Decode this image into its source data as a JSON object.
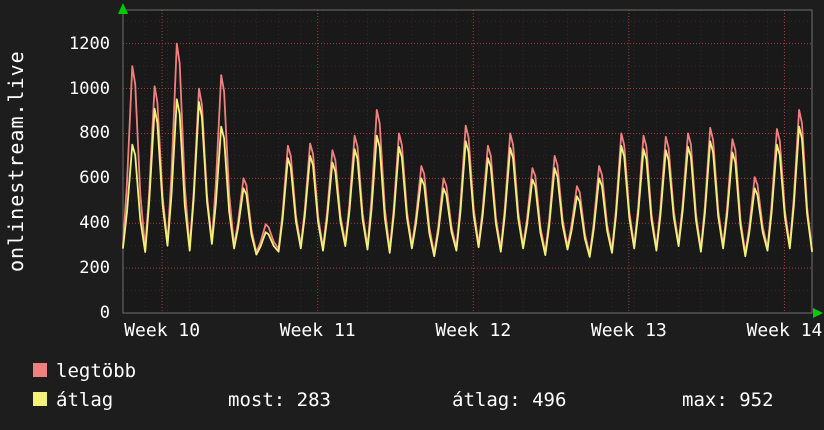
{
  "chart_data": {
    "type": "line",
    "title": "",
    "ylabel": "onlinestream.live",
    "xlabel": "",
    "grid": true,
    "legend_position": "bottom-left",
    "ylim": [
      0,
      1350
    ],
    "y_ticks": [
      0,
      200,
      400,
      600,
      800,
      1000,
      1200
    ],
    "x_tick_labels": [
      "Week 10",
      "Week 11",
      "Week 12",
      "Week 13",
      "Week 14"
    ],
    "week_line_days": [
      1.76,
      8.76,
      15.76,
      22.76,
      29.76
    ],
    "colors": {
      "background": "#1d1d1d",
      "canvas": "#191919",
      "grid_major": "#aa3a3a",
      "grid_minor": "#3c2626",
      "axis": "#6f6f6f",
      "arrow": "#00cc00",
      "text": "#ffffff"
    },
    "series": [
      {
        "name": "legtöbb",
        "color": "#f08080",
        "peaks": [
          1100,
          1010,
          1200,
          1000,
          1060,
          600,
          395,
          745,
          755,
          725,
          790,
          905,
          800,
          655,
          600,
          835,
          745,
          800,
          645,
          700,
          565,
          655,
          800,
          790,
          785,
          800,
          825,
          775,
          605,
          820,
          905
        ],
        "troughs": [
          300,
          285,
          310,
          290,
          320,
          300,
          270,
          285,
          300,
          290,
          310,
          295,
          280,
          300,
          265,
          290,
          305,
          285,
          300,
          270,
          295,
          260,
          280,
          300,
          290,
          310,
          285,
          300,
          265,
          290,
          300,
          283
        ]
      },
      {
        "name": "átlag",
        "color": "#f2f27a",
        "peaks": [
          750,
          910,
          952,
          940,
          830,
          555,
          360,
          690,
          700,
          670,
          730,
          790,
          740,
          600,
          555,
          765,
          690,
          735,
          595,
          645,
          520,
          600,
          745,
          730,
          725,
          740,
          765,
          715,
          555,
          750,
          830
        ],
        "troughs": [
          290,
          272,
          300,
          278,
          308,
          288,
          260,
          273,
          288,
          278,
          298,
          283,
          268,
          288,
          253,
          278,
          293,
          273,
          288,
          258,
          283,
          250,
          268,
          288,
          278,
          298,
          273,
          288,
          253,
          278,
          288,
          275
        ]
      }
    ]
  },
  "legend": {
    "items": [
      {
        "label": "legtöbb",
        "color": "#f08080"
      },
      {
        "label": "átlag",
        "color": "#f2f27a"
      }
    ]
  },
  "stats": {
    "most": "most: 283",
    "avg": "átlag: 496",
    "max": "max: 952"
  }
}
